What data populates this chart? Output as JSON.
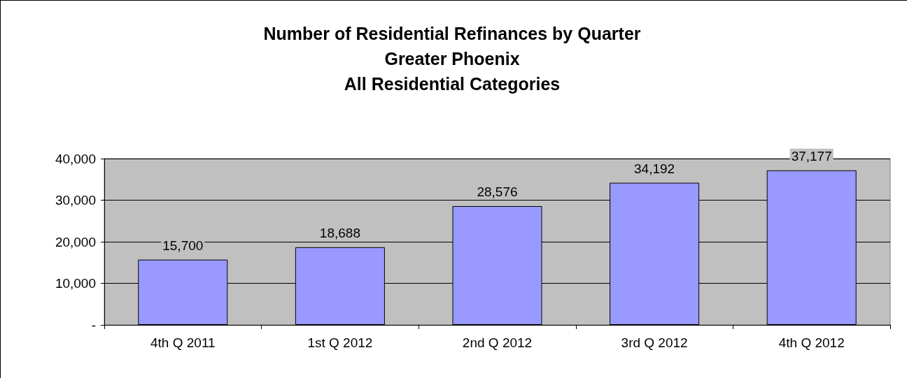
{
  "chart_data": {
    "type": "bar",
    "title": "Number of Residential Refinances by Quarter\nGreater Phoenix\nAll Residential Categories",
    "categories": [
      "4th Q 2011",
      "1st Q 2012",
      "2nd Q 2012",
      "3rd Q 2012",
      "4th Q 2012"
    ],
    "values": [
      15700,
      18688,
      28576,
      34192,
      37177
    ],
    "color": "#9999ff",
    "ylim": [
      0,
      40000
    ],
    "yticks": [
      {
        "value": 0,
        "label": "-"
      },
      {
        "value": 10000,
        "label": "10,000"
      },
      {
        "value": 20000,
        "label": "20,000"
      },
      {
        "value": 30000,
        "label": "30,000"
      },
      {
        "value": 40000,
        "label": "40,000"
      }
    ],
    "value_labels": [
      "15,700",
      "18,688",
      "28,576",
      "34,192",
      "37,177"
    ],
    "grid": "y"
  }
}
